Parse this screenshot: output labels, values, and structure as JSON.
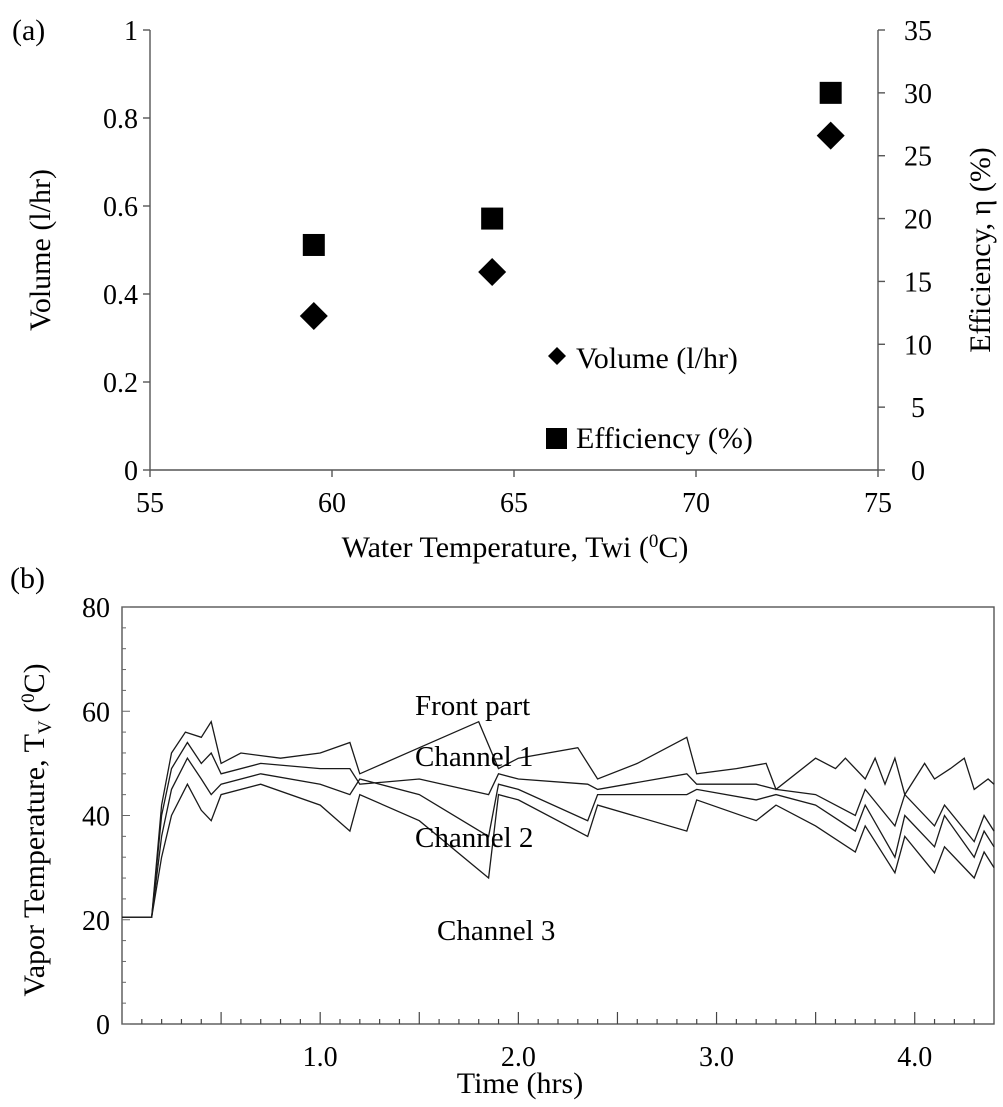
{
  "chart_data": [
    {
      "panel_label": "(a)",
      "type": "scatter",
      "xlabel": "Water Temperature, Twi (",
      "xlabel_sup": "0",
      "xlabel_tail": "C)",
      "ylabel": "Volume (l/hr)",
      "y2label": "Efficiency, η (%)",
      "xlim": [
        55,
        75
      ],
      "ylim": [
        0,
        1
      ],
      "y2lim": [
        0,
        35
      ],
      "x_ticks": [
        "55",
        "60",
        "65",
        "70",
        "75"
      ],
      "y_ticks": [
        "0",
        "0.2",
        "0.4",
        "0.6",
        "0.8",
        "1"
      ],
      "y2_ticks": [
        "0",
        "5",
        "10",
        "15",
        "20",
        "25",
        "30",
        "35"
      ],
      "legend_position": "bottom-right",
      "series": [
        {
          "name": "Volume (l/hr)",
          "marker": "diamond",
          "axis": "left",
          "x": [
            59.5,
            64.4,
            73.7
          ],
          "y": [
            0.35,
            0.45,
            0.76
          ]
        },
        {
          "name": "Efficiency (%)",
          "marker": "square",
          "axis": "right",
          "x": [
            59.5,
            64.4,
            73.7
          ],
          "y": [
            17.9,
            20.0,
            30.0
          ]
        }
      ]
    },
    {
      "panel_label": "(b)",
      "type": "line",
      "xlabel": "Time (hrs)",
      "ylabel_main": "Vapor Temperature,  T",
      "ylabel_sub": "V",
      "ylabel_unit_open": "(",
      "ylabel_unit_sup": "0",
      "ylabel_unit_close": "C)",
      "xlim": [
        0,
        4.4
      ],
      "ylim": [
        0,
        80
      ],
      "x_ticks": [
        "1.0",
        "2.0",
        "3.0",
        "4.0"
      ],
      "y_ticks": [
        "0",
        "20",
        "40",
        "60",
        "80"
      ],
      "annotations": [
        "Front part",
        "Channel 1",
        "Channel 2",
        "Channel 3"
      ],
      "series": [
        {
          "label": "Front part",
          "x": [
            0,
            0.15,
            0.2,
            0.25,
            0.32,
            0.4,
            0.45,
            0.5,
            0.6,
            0.8,
            1.0,
            1.15,
            1.2,
            1.5,
            1.8,
            1.9,
            2.0,
            2.3,
            2.4,
            2.6,
            2.85,
            2.9,
            3.1,
            3.25,
            3.3,
            3.5,
            3.6,
            3.65,
            3.75,
            3.8,
            3.85,
            3.9,
            3.95,
            4.05,
            4.1,
            4.18,
            4.25,
            4.3,
            4.37,
            4.4
          ],
          "y": [
            20.5,
            20.5,
            42,
            52,
            56,
            55,
            58,
            50,
            52,
            51,
            52,
            54,
            48,
            53,
            58,
            49,
            51,
            53,
            47,
            50,
            55,
            48,
            49,
            50,
            45,
            51,
            49,
            51,
            47,
            51,
            46,
            51,
            44,
            50,
            47,
            49,
            51,
            45,
            47,
            46
          ]
        },
        {
          "label": "Channel 1",
          "x": [
            0,
            0.15,
            0.2,
            0.25,
            0.33,
            0.4,
            0.45,
            0.5,
            0.7,
            1.0,
            1.15,
            1.2,
            1.5,
            1.85,
            1.9,
            2.0,
            2.35,
            2.4,
            2.85,
            2.9,
            3.2,
            3.3,
            3.5,
            3.7,
            3.75,
            3.9,
            3.95,
            4.1,
            4.15,
            4.3,
            4.35,
            4.4
          ],
          "y": [
            20.5,
            20.5,
            40,
            49,
            54,
            50,
            52,
            48,
            50,
            49,
            49,
            46,
            47,
            44,
            48,
            47,
            46,
            45,
            48,
            46,
            46,
            45,
            44,
            40,
            45,
            38,
            44,
            38,
            42,
            35,
            40,
            37
          ]
        },
        {
          "label": "Channel 2",
          "x": [
            0,
            0.15,
            0.2,
            0.25,
            0.33,
            0.4,
            0.45,
            0.5,
            0.7,
            1.0,
            1.15,
            1.2,
            1.5,
            1.85,
            1.9,
            2.0,
            2.35,
            2.4,
            2.85,
            2.9,
            3.2,
            3.3,
            3.5,
            3.7,
            3.75,
            3.9,
            3.95,
            4.1,
            4.15,
            4.3,
            4.35,
            4.4
          ],
          "y": [
            20.5,
            20.5,
            36,
            45,
            51,
            47,
            44,
            46,
            48,
            46,
            44,
            47,
            44,
            36,
            46,
            45,
            39,
            44,
            44,
            45,
            43,
            44,
            42,
            37,
            42,
            32,
            40,
            34,
            40,
            32,
            37,
            34
          ]
        },
        {
          "label": "Channel 3",
          "x": [
            0,
            0.15,
            0.2,
            0.25,
            0.33,
            0.4,
            0.45,
            0.5,
            0.7,
            1.0,
            1.15,
            1.2,
            1.5,
            1.85,
            1.9,
            2.0,
            2.35,
            2.4,
            2.85,
            2.9,
            3.2,
            3.3,
            3.5,
            3.7,
            3.75,
            3.9,
            3.95,
            4.1,
            4.15,
            4.3,
            4.35,
            4.4
          ],
          "y": [
            20.5,
            20.5,
            32,
            40,
            46,
            41,
            39,
            44,
            46,
            42,
            37,
            44,
            39,
            28,
            44,
            43,
            36,
            42,
            37,
            43,
            39,
            42,
            38,
            33,
            38,
            29,
            36,
            29,
            34,
            28,
            33,
            30
          ]
        }
      ]
    }
  ]
}
